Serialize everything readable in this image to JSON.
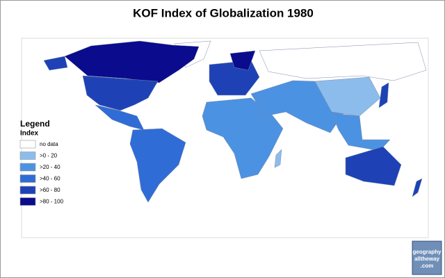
{
  "title": "KOF Index of Globalization 1980",
  "legend": {
    "title": "Legend",
    "subtitle": "Index",
    "items": [
      {
        "label": "no data",
        "color": "#ffffff"
      },
      {
        "label": ">0 - 20",
        "color": "#8cbcec"
      },
      {
        "label": ">20 - 40",
        "color": "#4c92e2"
      },
      {
        "label": ">40 - 60",
        "color": "#2f6cd6"
      },
      {
        "label": ">60 - 80",
        "color": "#1e42b6"
      },
      {
        "label": ">80 - 100",
        "color": "#0b0b8e"
      }
    ]
  },
  "logo": {
    "lines": [
      "geography",
      "alltheway",
      ".com"
    ]
  }
}
